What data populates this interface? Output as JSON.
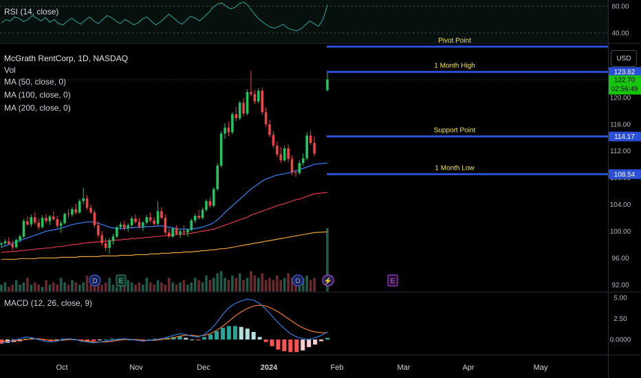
{
  "header": {
    "title": "McGrath RentCorp, 1D, NASDAQ",
    "vol_label": "Vol",
    "ma": [
      "MA (50, close, 0)",
      "MA (100, close, 0)",
      "MA (200, close, 0)"
    ]
  },
  "rsi": {
    "label": "RSI (14, close)",
    "ticks": [
      "80.00",
      "40.00"
    ],
    "values": [
      55,
      60,
      58,
      64,
      62,
      57,
      60,
      66,
      62,
      58,
      63,
      56,
      60,
      54,
      52,
      58,
      62,
      57,
      53,
      59,
      64,
      58,
      54,
      60,
      66,
      63,
      58,
      54,
      60,
      57,
      52,
      55,
      61,
      64,
      58,
      52,
      56,
      62,
      68,
      63,
      57,
      53,
      59,
      65,
      62,
      58,
      64,
      70,
      78,
      83,
      85,
      80,
      76,
      78,
      84,
      86,
      81,
      72,
      64,
      58,
      53,
      49,
      47,
      50,
      53,
      47,
      45,
      43,
      46,
      52,
      58,
      54,
      50,
      60,
      82
    ]
  },
  "macd": {
    "label": "MACD (12, 26, close, 9)",
    "ticks": [
      "5.00",
      "2.50",
      "0.0000"
    ],
    "macd_line": [
      -0.4,
      -0.3,
      -0.1,
      0.1,
      0.3,
      0.2,
      0.0,
      -0.2,
      -0.3,
      -0.2,
      0.0,
      0.1,
      0.0,
      -0.2,
      -0.3,
      -0.4,
      -0.3,
      -0.2,
      -0.1,
      0.0,
      0.1,
      0.0,
      -0.1,
      -0.2,
      -0.1,
      0.0,
      0.1,
      0.3,
      0.5,
      0.7,
      0.6,
      0.4,
      0.3,
      0.6,
      1.2,
      2.0,
      3.0,
      3.8,
      4.3,
      4.6,
      4.8,
      4.7,
      4.3,
      3.6,
      2.8,
      2.0,
      1.3,
      0.7,
      0.3,
      0.1,
      0.0,
      0.2,
      0.5,
      0.9
    ],
    "signal_line": [
      -0.2,
      -0.2,
      -0.2,
      -0.1,
      0.0,
      0.1,
      0.1,
      0.0,
      -0.1,
      -0.1,
      -0.1,
      0.0,
      0.0,
      -0.1,
      -0.2,
      -0.3,
      -0.3,
      -0.3,
      -0.2,
      -0.1,
      0.0,
      0.0,
      0.0,
      -0.1,
      -0.1,
      -0.1,
      0.0,
      0.1,
      0.2,
      0.4,
      0.5,
      0.5,
      0.4,
      0.5,
      0.7,
      1.1,
      1.6,
      2.2,
      2.8,
      3.3,
      3.7,
      4.0,
      4.1,
      4.0,
      3.7,
      3.3,
      2.8,
      2.3,
      1.8,
      1.4,
      1.1,
      0.9,
      0.8,
      0.8
    ],
    "histogram": [
      -0.5,
      -0.4,
      -0.3,
      -0.2,
      0.1,
      0.2,
      0.1,
      -0.1,
      -0.2,
      -0.1,
      0.1,
      0.1,
      0.0,
      -0.1,
      -0.2,
      -0.2,
      -0.1,
      0.0,
      0.1,
      0.1,
      0.1,
      0.0,
      -0.1,
      -0.1,
      0.0,
      0.1,
      0.1,
      0.2,
      0.3,
      0.4,
      0.2,
      0.0,
      -0.1,
      0.3,
      0.6,
      1.0,
      1.4,
      1.6,
      1.6,
      1.5,
      1.3,
      0.9,
      0.3,
      -0.3,
      -0.8,
      -1.2,
      -1.4,
      -1.5,
      -1.5,
      -1.3,
      -0.9,
      -0.6,
      -0.2,
      0.2
    ]
  },
  "chart_data": {
    "type": "candlestick",
    "x_labels": [
      "Oct",
      "Nov",
      "Dec",
      "2024",
      "Feb",
      "Mar",
      "Apr",
      "May"
    ],
    "y_ticks": [
      "124.00",
      "120.00",
      "116.00",
      "112.00",
      "108.00",
      "104.00",
      "100.00",
      "96.00",
      "92.00"
    ],
    "ylim": [
      91,
      128
    ],
    "currency": "USD",
    "last_price": "122.70",
    "countdown": "02:56:49",
    "price_levels": [
      {
        "name": "Pivot Point",
        "value": 127.6,
        "badge": ""
      },
      {
        "name": "1 Month High",
        "value": 123.82,
        "badge": "123.82"
      },
      {
        "name": "Support Point",
        "value": 114.17,
        "badge": "114.17"
      },
      {
        "name": "1 Month Low",
        "value": 108.54,
        "badge": "108.54"
      }
    ],
    "candles": [
      [
        98.0,
        98.4,
        97.5,
        98.2
      ],
      [
        98.2,
        98.8,
        97.8,
        98.5
      ],
      [
        98.5,
        99.1,
        98.0,
        98.1
      ],
      [
        98.1,
        98.6,
        97.2,
        97.6
      ],
      [
        97.6,
        98.9,
        97.4,
        98.7
      ],
      [
        98.7,
        99.5,
        98.3,
        99.2
      ],
      [
        99.2,
        101.8,
        99.0,
        101.5
      ],
      [
        101.5,
        102.2,
        100.8,
        101.0
      ],
      [
        101.0,
        102.5,
        100.6,
        102.1
      ],
      [
        102.1,
        102.8,
        101.0,
        101.3
      ],
      [
        101.3,
        101.9,
        100.2,
        100.6
      ],
      [
        100.6,
        102.4,
        100.4,
        102.0
      ],
      [
        102.0,
        102.6,
        101.2,
        101.5
      ],
      [
        101.5,
        102.4,
        100.9,
        102.2
      ],
      [
        102.2,
        103.0,
        101.6,
        101.8
      ],
      [
        101.8,
        102.3,
        100.5,
        100.8
      ],
      [
        100.8,
        101.6,
        99.8,
        101.2
      ],
      [
        101.2,
        102.8,
        101.0,
        102.6
      ],
      [
        102.6,
        103.3,
        102.0,
        102.5
      ],
      [
        102.5,
        103.6,
        102.2,
        103.3
      ],
      [
        103.3,
        104.1,
        102.5,
        102.8
      ],
      [
        102.8,
        104.8,
        102.6,
        104.5
      ],
      [
        104.5,
        106.5,
        104.0,
        104.9
      ],
      [
        104.9,
        105.4,
        103.2,
        103.5
      ],
      [
        103.5,
        104.0,
        102.6,
        102.8
      ],
      [
        102.8,
        103.2,
        100.5,
        100.9
      ],
      [
        100.9,
        101.5,
        99.0,
        99.4
      ],
      [
        99.4,
        100.0,
        97.8,
        98.2
      ],
      [
        98.2,
        99.0,
        97.0,
        97.5
      ],
      [
        97.5,
        99.0,
        96.6,
        98.6
      ],
      [
        98.6,
        99.6,
        98.0,
        99.2
      ],
      [
        99.2,
        100.8,
        99.0,
        100.6
      ],
      [
        100.6,
        101.4,
        100.2,
        101.0
      ],
      [
        101.0,
        101.6,
        100.1,
        100.5
      ],
      [
        100.5,
        101.2,
        99.9,
        100.9
      ],
      [
        100.9,
        102.2,
        100.5,
        101.9
      ],
      [
        101.9,
        102.5,
        101.1,
        101.4
      ],
      [
        101.4,
        102.0,
        100.4,
        100.7
      ],
      [
        100.7,
        101.5,
        100.0,
        101.3
      ],
      [
        101.3,
        102.4,
        101.0,
        102.1
      ],
      [
        102.1,
        102.8,
        101.3,
        101.6
      ],
      [
        101.6,
        102.1,
        100.8,
        101.1
      ],
      [
        101.1,
        104.5,
        100.9,
        103.0
      ],
      [
        103.0,
        103.6,
        101.8,
        102.0
      ],
      [
        102.0,
        102.5,
        99.5,
        99.8
      ],
      [
        99.8,
        100.4,
        99.0,
        99.2
      ],
      [
        99.2,
        100.6,
        99.0,
        100.4
      ],
      [
        100.4,
        100.9,
        99.4,
        99.6
      ],
      [
        99.6,
        100.2,
        99.0,
        100.0
      ],
      [
        100.0,
        100.9,
        99.4,
        99.8
      ],
      [
        99.8,
        100.4,
        99.2,
        100.2
      ],
      [
        100.2,
        101.9,
        100.0,
        101.6
      ],
      [
        101.6,
        102.6,
        101.2,
        102.3
      ],
      [
        102.3,
        103.2,
        101.7,
        102.0
      ],
      [
        102.0,
        103.5,
        101.8,
        103.2
      ],
      [
        103.2,
        104.8,
        102.9,
        104.5
      ],
      [
        104.5,
        105.1,
        103.5,
        103.8
      ],
      [
        103.8,
        106.6,
        103.6,
        106.3
      ],
      [
        106.3,
        110.2,
        106.0,
        109.8
      ],
      [
        109.8,
        115.0,
        109.5,
        114.6
      ],
      [
        114.6,
        116.2,
        113.8,
        115.5
      ],
      [
        115.5,
        116.4,
        114.2,
        114.8
      ],
      [
        114.8,
        117.8,
        114.5,
        117.5
      ],
      [
        117.5,
        118.6,
        116.4,
        116.9
      ],
      [
        116.9,
        119.5,
        116.6,
        119.2
      ],
      [
        119.2,
        119.9,
        117.2,
        117.6
      ],
      [
        117.6,
        121.2,
        117.3,
        120.8
      ],
      [
        120.8,
        124.0,
        120.2,
        120.5
      ],
      [
        120.5,
        121.1,
        119.0,
        119.4
      ],
      [
        119.4,
        121.4,
        119.1,
        121.0
      ],
      [
        121.0,
        121.5,
        117.4,
        117.8
      ],
      [
        117.8,
        118.5,
        115.6,
        116.0
      ],
      [
        116.0,
        116.6,
        114.1,
        114.4
      ],
      [
        114.4,
        115.0,
        112.4,
        112.8
      ],
      [
        112.8,
        113.4,
        111.1,
        111.5
      ],
      [
        111.5,
        112.6,
        110.2,
        110.6
      ],
      [
        110.6,
        112.8,
        110.4,
        112.4
      ],
      [
        112.4,
        113.0,
        110.3,
        110.8
      ],
      [
        110.8,
        111.3,
        108.4,
        108.8
      ],
      [
        108.8,
        109.2,
        108.1,
        108.7
      ],
      [
        108.7,
        110.6,
        108.5,
        110.2
      ],
      [
        110.2,
        111.6,
        109.8,
        110.9
      ],
      [
        110.9,
        114.8,
        110.6,
        114.3
      ],
      [
        114.3,
        115.1,
        112.9,
        113.2
      ],
      [
        113.2,
        114.2,
        111.2,
        111.6
      ],
      [
        121.1,
        124.0,
        120.9,
        122.7
      ]
    ],
    "ma50": [
      97.6,
      97.8,
      98.0,
      98.2,
      98.4,
      98.6,
      98.8,
      99.0,
      99.2,
      99.4,
      99.6,
      99.8,
      100.0,
      100.1,
      100.2,
      100.3,
      100.5,
      100.6,
      100.8,
      101.0,
      101.1,
      101.2,
      101.3,
      101.4,
      101.4,
      101.3,
      101.2,
      101.0,
      100.8,
      100.6,
      100.5,
      100.4,
      100.4,
      100.4,
      100.5,
      100.5,
      100.6,
      100.6,
      100.6,
      100.7,
      100.7,
      100.7,
      100.8,
      100.8,
      100.7,
      100.6,
      100.5,
      100.4,
      100.3,
      100.3,
      100.3,
      100.3,
      100.4,
      100.5,
      100.6,
      100.8,
      101.0,
      101.3,
      101.7,
      102.2,
      102.8,
      103.3,
      103.8,
      104.3,
      104.8,
      105.3,
      105.8,
      106.3,
      106.7,
      107.1,
      107.5,
      107.8,
      108.0,
      108.2,
      108.4,
      108.5,
      108.6,
      108.7,
      108.9,
      109.0,
      109.2,
      109.4,
      109.6,
      109.8,
      110.0,
      110.2
    ],
    "ma100": [
      96.8,
      96.9,
      96.9,
      97.0,
      97.0,
      97.1,
      97.1,
      97.2,
      97.2,
      97.3,
      97.4,
      97.4,
      97.5,
      97.5,
      97.6,
      97.7,
      97.7,
      97.8,
      97.9,
      98.0,
      98.0,
      98.1,
      98.2,
      98.3,
      98.3,
      98.4,
      98.4,
      98.5,
      98.5,
      98.6,
      98.6,
      98.7,
      98.7,
      98.8,
      98.8,
      98.9,
      98.9,
      99.0,
      99.0,
      99.1,
      99.1,
      99.2,
      99.2,
      99.3,
      99.3,
      99.4,
      99.4,
      99.5,
      99.5,
      99.6,
      99.6,
      99.7,
      99.8,
      99.9,
      100.0,
      100.1,
      100.2,
      100.3,
      100.5,
      100.7,
      100.9,
      101.1,
      101.3,
      101.5,
      101.7,
      101.9,
      102.1,
      102.4,
      102.6,
      102.8,
      103.0,
      103.2,
      103.4,
      103.6,
      103.8,
      104.0,
      104.1,
      104.3,
      104.5,
      104.7,
      104.8,
      105.0,
      105.2,
      105.4,
      105.6,
      105.8
    ],
    "ma200": [
      95.8,
      95.8,
      95.8,
      95.8,
      95.8,
      95.9,
      95.9,
      95.9,
      95.9,
      95.9,
      96.0,
      96.0,
      96.0,
      96.0,
      96.0,
      96.0,
      96.1,
      96.1,
      96.1,
      96.1,
      96.1,
      96.2,
      96.2,
      96.2,
      96.2,
      96.2,
      96.2,
      96.3,
      96.3,
      96.3,
      96.3,
      96.3,
      96.4,
      96.4,
      96.4,
      96.4,
      96.5,
      96.5,
      96.5,
      96.5,
      96.6,
      96.6,
      96.6,
      96.7,
      96.7,
      96.7,
      96.8,
      96.8,
      96.8,
      96.9,
      96.9,
      96.9,
      97.0,
      97.0,
      97.1,
      97.1,
      97.2,
      97.2,
      97.3,
      97.4,
      97.4,
      97.5,
      97.6,
      97.7,
      97.8,
      97.9,
      98.0,
      98.1,
      98.2,
      98.3,
      98.4,
      98.5,
      98.6,
      98.7,
      98.8,
      98.9,
      99.0,
      99.1,
      99.2,
      99.3,
      99.4,
      99.5,
      99.6,
      99.7,
      99.8,
      99.9
    ],
    "volume": [
      3,
      4,
      2,
      3,
      5,
      3,
      4,
      6,
      3,
      4,
      3,
      2,
      5,
      3,
      4,
      3,
      6,
      4,
      3,
      5,
      4,
      3,
      4,
      7,
      3,
      4,
      5,
      3,
      4,
      6,
      3,
      2,
      4,
      3,
      5,
      4,
      3,
      4,
      3,
      6,
      4,
      3,
      5,
      4,
      3,
      6,
      4,
      3,
      4,
      5,
      3,
      4,
      6,
      5,
      4,
      7,
      5,
      6,
      8,
      9,
      6,
      5,
      7,
      6,
      8,
      5,
      6,
      9,
      7,
      6,
      8,
      5,
      6,
      5,
      7,
      5,
      6,
      8,
      6,
      5,
      4,
      6,
      7,
      5,
      6,
      28
    ],
    "markers": [
      {
        "label": "D",
        "kind": "dividend",
        "index": 30
      },
      {
        "label": "E",
        "kind": "earnings",
        "index": 38
      },
      {
        "label": "D",
        "kind": "dividend",
        "index": 95
      },
      {
        "label": "⚡",
        "kind": "split",
        "index": 105
      },
      {
        "label": "E",
        "kind": "earnings-future",
        "index": 126
      }
    ]
  },
  "colors": {
    "up": "#22c55e",
    "down": "#ef4444",
    "ma50": "#3b82f6",
    "ma100": "#e0384b",
    "ma200": "#e8a33d",
    "level": "#2b4fd6",
    "level_label": "#f5e642",
    "rsi": "#26a69a",
    "macd": "#2f7de1",
    "signal": "#f57c2c",
    "current": "#16c60c"
  }
}
